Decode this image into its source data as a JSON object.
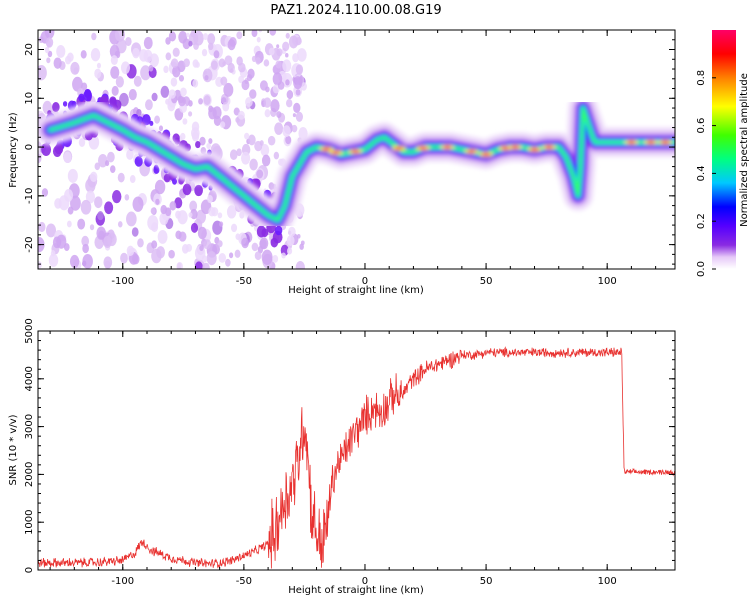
{
  "figure": {
    "title": "PAZ1.2024.110.00.08.G19"
  },
  "chart_data": [
    {
      "type": "heatmap",
      "xlabel": "Height of straight line (km)",
      "ylabel": "Frequency (Hz)",
      "xlim": [
        -135,
        128
      ],
      "ylim": [
        -25,
        24
      ],
      "xticks": [
        -100,
        -50,
        0,
        50,
        100
      ],
      "yticks": [
        -20,
        -10,
        0,
        10,
        20
      ],
      "colorbar": {
        "label": "Normalized spectral amplitude",
        "range": [
          0,
          1
        ],
        "ticks": [
          0.0,
          0.2,
          0.4,
          0.6,
          0.8
        ],
        "colormap": [
          "#ffffff",
          "#e6c8f8",
          "#8a2be2",
          "#5500ff",
          "#0000ff",
          "#00c8ff",
          "#00ff80",
          "#40ff00",
          "#ffff00",
          "#ff8000",
          "#ff0000",
          "#ff0066"
        ]
      },
      "ridge": [
        [
          -130,
          3.5
        ],
        [
          -120,
          5.0
        ],
        [
          -112,
          6.5
        ],
        [
          -106,
          5.0
        ],
        [
          -100,
          3.5
        ],
        [
          -95,
          2.0
        ],
        [
          -90,
          1.0
        ],
        [
          -85,
          -0.5
        ],
        [
          -80,
          -2.0
        ],
        [
          -75,
          -3.5
        ],
        [
          -70,
          -4.5
        ],
        [
          -65,
          -4.0
        ],
        [
          -60,
          -6.0
        ],
        [
          -55,
          -8.0
        ],
        [
          -50,
          -10.0
        ],
        [
          -45,
          -12.0
        ],
        [
          -40,
          -14.0
        ],
        [
          -36,
          -15.0
        ],
        [
          -33,
          -12.0
        ],
        [
          -30,
          -6.0
        ],
        [
          -27,
          -3.5
        ],
        [
          -24,
          -1.0
        ],
        [
          -20,
          0.0
        ],
        [
          -15,
          -0.5
        ],
        [
          -10,
          -1.5
        ],
        [
          -5,
          -1.0
        ],
        [
          0,
          -0.5
        ],
        [
          5,
          1.5
        ],
        [
          8,
          2.0
        ],
        [
          12,
          0.5
        ],
        [
          16,
          -1.0
        ],
        [
          20,
          -1.0
        ],
        [
          25,
          0.0
        ],
        [
          30,
          0.0
        ],
        [
          35,
          0.0
        ],
        [
          40,
          -0.5
        ],
        [
          45,
          -1.0
        ],
        [
          50,
          -1.5
        ],
        [
          55,
          -0.5
        ],
        [
          60,
          0.0
        ],
        [
          65,
          0.0
        ],
        [
          70,
          -0.5
        ],
        [
          75,
          0.0
        ],
        [
          80,
          0.0
        ],
        [
          83,
          -2.0
        ],
        [
          86,
          -6.0
        ],
        [
          88,
          -10.0
        ],
        [
          89,
          -4.0
        ],
        [
          90,
          8.0
        ],
        [
          92,
          5.0
        ],
        [
          94,
          2.0
        ],
        [
          95,
          1.0
        ],
        [
          100,
          1.0
        ],
        [
          105,
          1.0
        ],
        [
          110,
          1.0
        ],
        [
          115,
          1.0
        ],
        [
          120,
          1.0
        ],
        [
          128,
          1.0
        ]
      ]
    },
    {
      "type": "line",
      "xlabel": "Height of straight line (km)",
      "ylabel": "SNR (10 * v/v)",
      "xlim": [
        -135,
        128
      ],
      "ylim": [
        0,
        5000
      ],
      "xticks": [
        -100,
        -50,
        0,
        50,
        100
      ],
      "yticks": [
        0,
        1000,
        2000,
        3000,
        4000,
        5000
      ],
      "color": "#e8312f",
      "series": [
        {
          "x": [
            -135,
            -120,
            -110,
            -100,
            -95,
            -92,
            -90,
            -88,
            -85,
            -80,
            -75,
            -70,
            -65,
            -60,
            -55,
            -50,
            -45,
            -40,
            -37,
            -35,
            -32,
            -30,
            -28,
            -26,
            -25,
            -24,
            -23,
            -22,
            -20,
            -18,
            -16,
            -14,
            -12,
            -10,
            -8,
            -6,
            -4,
            -2,
            0,
            2,
            4,
            6,
            8,
            10,
            12,
            14,
            16,
            18,
            20,
            25,
            30,
            35,
            40,
            45,
            50,
            55,
            60,
            65,
            70,
            75,
            80,
            85,
            90,
            95,
            100,
            103,
            106,
            107,
            108,
            110,
            115,
            120,
            128
          ],
          "y": [
            150,
            150,
            160,
            200,
            350,
            600,
            500,
            400,
            350,
            250,
            200,
            150,
            130,
            150,
            200,
            300,
            400,
            550,
            800,
            1200,
            1600,
            1800,
            2200,
            2800,
            3200,
            2600,
            2000,
            1200,
            800,
            500,
            800,
            1700,
            2100,
            2300,
            2500,
            2700,
            2900,
            3000,
            3200,
            3300,
            3400,
            3300,
            3400,
            3500,
            3700,
            3600,
            3700,
            3900,
            4000,
            4200,
            4300,
            4400,
            4500,
            4500,
            4550,
            4550,
            4550,
            4550,
            4550,
            4550,
            4550,
            4550,
            4550,
            4550,
            4550,
            4550,
            4550,
            2050,
            2050,
            2050,
            2050,
            2050,
            2050
          ]
        }
      ]
    }
  ]
}
